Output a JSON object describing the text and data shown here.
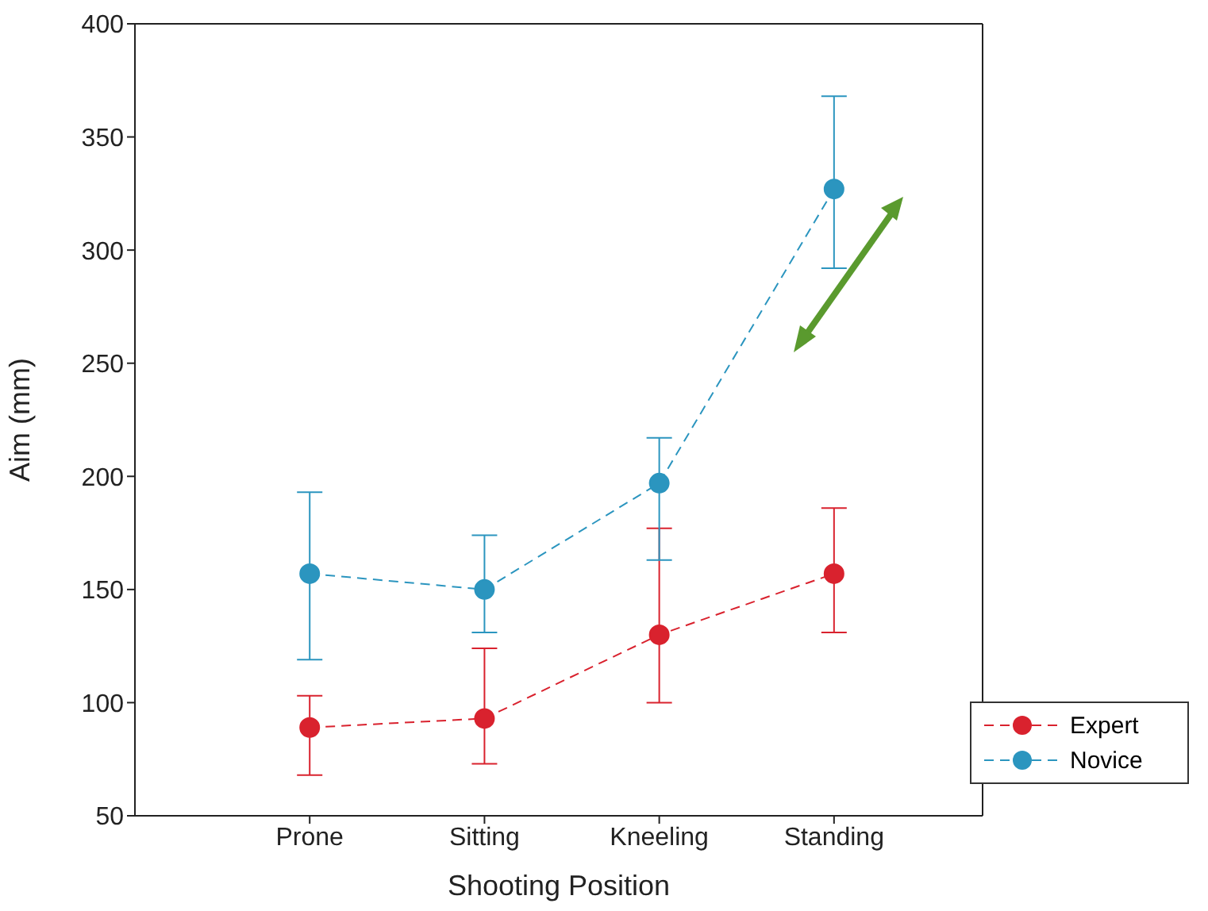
{
  "chart_data": {
    "type": "line",
    "xlabel": "Shooting Position",
    "ylabel": "Aim  (mm)",
    "categories": [
      "Prone",
      "Sitting",
      "Kneeling",
      "Standing"
    ],
    "series": [
      {
        "name": "Expert",
        "color": "#d9222e",
        "values": [
          89,
          93,
          130,
          157
        ],
        "errors": [
          [
            68,
            103
          ],
          [
            73,
            124
          ],
          [
            100,
            177
          ],
          [
            131,
            186
          ]
        ]
      },
      {
        "name": "Novice",
        "color": "#2b95bf",
        "values": [
          157,
          150,
          197,
          327
        ],
        "errors": [
          [
            119,
            193
          ],
          [
            131,
            174
          ],
          [
            163,
            217
          ],
          [
            292,
            368
          ]
        ]
      }
    ],
    "ylim": [
      50,
      400
    ],
    "yticks": [
      50,
      100,
      150,
      200,
      250,
      300,
      350,
      400
    ],
    "grid": false,
    "legend": "bottom right",
    "marker": "circle",
    "line_style": "dashed"
  }
}
